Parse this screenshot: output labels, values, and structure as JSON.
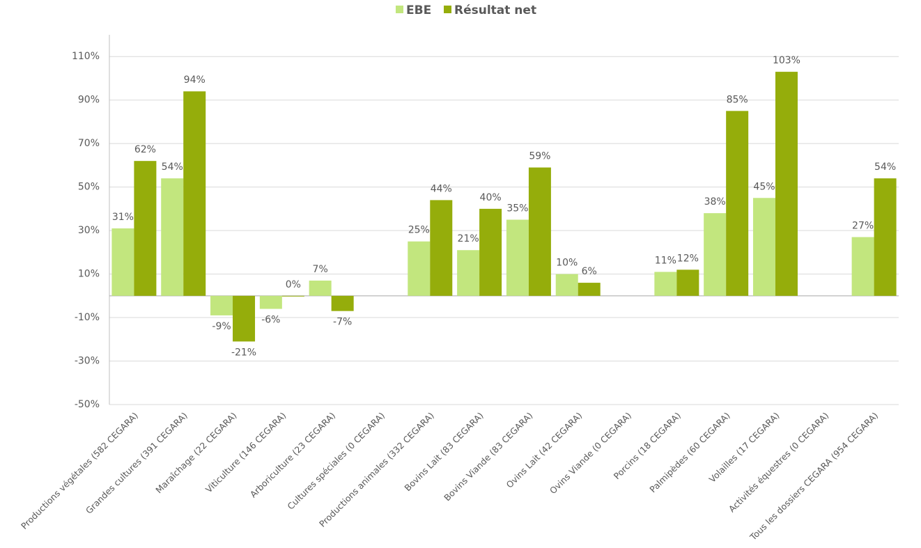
{
  "chart_data": {
    "type": "bar",
    "categories": [
      "Productions végétales (582 CEGARA)",
      "Grandes cultures (391 CEGARA)",
      "Maraîchage (22 CEGARA)",
      "Viticulture (146 CEGARA)",
      "Arboriculture (23 CEGARA)",
      "Cultures spéciales (0 CEGARA)",
      "Productions animales (332 CEGARA)",
      "Bovins Lait (83 CEGARA)",
      "Bovins Viande (83 CEGARA)",
      "Ovins Lait (42 CEGARA)",
      "Ovins Viande (0 CEGARA)",
      "Porcins (18 CEGARA)",
      "Palmipèdes (60 CEGARA)",
      "Volailles (17 CEGARA)",
      "Activités équestres (0 CEGARA)",
      "Tous les dossiers CEGARA (954 CEGARA)"
    ],
    "series": [
      {
        "name": "EBE",
        "color": "#c2e67e",
        "values": [
          31,
          54,
          -9,
          -6,
          7,
          null,
          25,
          21,
          35,
          10,
          null,
          11,
          38,
          45,
          null,
          27
        ],
        "value_labels": [
          "31%",
          "54%",
          "-9%",
          "-6%",
          "7%",
          null,
          "25%",
          "21%",
          "35%",
          "10%",
          null,
          "11%",
          "38%",
          "45%",
          null,
          "27%"
        ]
      },
      {
        "name": "Résultat net",
        "color": "#95ad0b",
        "values": [
          62,
          94,
          -21,
          0,
          -7,
          null,
          44,
          40,
          59,
          6,
          null,
          12,
          85,
          103,
          null,
          54
        ],
        "value_labels": [
          "62%",
          "94%",
          "-21%",
          "0%",
          "-7%",
          null,
          "44%",
          "40%",
          "59%",
          "6%",
          null,
          "12%",
          "85%",
          "103%",
          null,
          "54%"
        ]
      }
    ],
    "ylim": [
      -50,
      120
    ],
    "yticks": [
      {
        "value": -50,
        "label": "-50%"
      },
      {
        "value": -30,
        "label": "-30%"
      },
      {
        "value": -10,
        "label": "-10%"
      },
      {
        "value": 10,
        "label": "10%"
      },
      {
        "value": 30,
        "label": "30%"
      },
      {
        "value": 50,
        "label": "50%"
      },
      {
        "value": 70,
        "label": "70%"
      },
      {
        "value": 90,
        "label": "90%"
      },
      {
        "value": 110,
        "label": "110%"
      }
    ],
    "grid": true,
    "legend": "top"
  }
}
